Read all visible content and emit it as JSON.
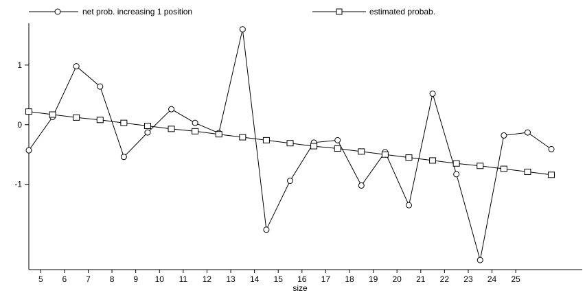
{
  "chart_data": {
    "type": "line",
    "title": "",
    "xlabel": "size",
    "ylabel": "",
    "x_ticks": [
      "5",
      "6",
      "7",
      "8",
      "9",
      "10",
      "11",
      "12",
      "13",
      "14",
      "15",
      "16",
      "17",
      "18",
      "19",
      "20",
      "21",
      "22",
      "23",
      "24",
      "25"
    ],
    "y_ticks": [
      "-1",
      "0",
      "1"
    ],
    "xlim": [
      4.5,
      27.8
    ],
    "ylim": [
      -2.43,
      1.7
    ],
    "grid": false,
    "legend_position": "top",
    "series": [
      {
        "name": "net prob. increasing 1 position",
        "marker": "circle",
        "x": [
          4.5,
          5.5,
          6.5,
          7.5,
          8.5,
          9.5,
          10.5,
          11.5,
          12.5,
          13.5,
          14.5,
          15.5,
          16.5,
          17.5,
          18.5,
          19.5,
          20.5,
          21.5,
          22.5,
          23.5,
          24.5,
          25.5,
          26.5
        ],
        "y": [
          -0.43,
          0.13,
          0.98,
          0.64,
          -0.54,
          -0.13,
          0.26,
          0.03,
          -0.14,
          1.6,
          -1.76,
          -0.94,
          -0.3,
          -0.26,
          -1.02,
          -0.46,
          -1.35,
          0.52,
          -0.83,
          -2.27,
          -0.18,
          -0.13,
          -0.41
        ]
      },
      {
        "name": "estimated probab.",
        "marker": "square",
        "x": [
          4.5,
          5.5,
          6.5,
          7.5,
          8.5,
          9.5,
          10.5,
          11.5,
          12.5,
          13.5,
          14.5,
          15.5,
          16.5,
          17.5,
          18.5,
          19.5,
          20.5,
          21.5,
          22.5,
          23.5,
          24.5,
          25.5,
          26.5
        ],
        "y": [
          0.22,
          0.17,
          0.12,
          0.08,
          0.03,
          -0.02,
          -0.07,
          -0.11,
          -0.16,
          -0.21,
          -0.26,
          -0.31,
          -0.36,
          -0.4,
          -0.45,
          -0.5,
          -0.55,
          -0.6,
          -0.65,
          -0.69,
          -0.74,
          -0.79,
          -0.84
        ]
      }
    ]
  }
}
